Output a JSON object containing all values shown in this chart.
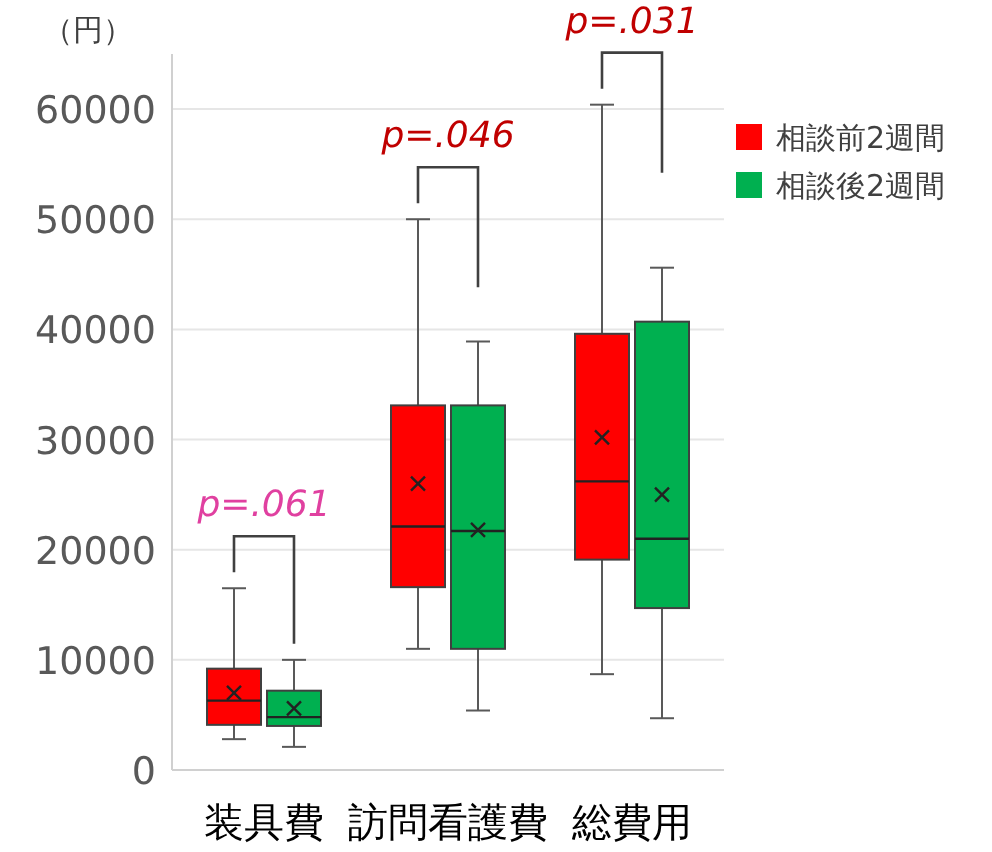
{
  "chart_data": {
    "type": "box",
    "ylabel": "（円）",
    "categories": [
      "装具費",
      "訪問看護費",
      "総費用"
    ],
    "series": [
      {
        "name": "相談前2週間",
        "color": "#ff0000",
        "boxes": [
          {
            "low": 2800,
            "q1": 4100,
            "median": 6300,
            "q3": 9200,
            "high": 16500,
            "mean": 7000
          },
          {
            "low": 11000,
            "q1": 16600,
            "median": 22100,
            "q3": 33100,
            "high": 50000,
            "mean": 26000
          },
          {
            "low": 8700,
            "q1": 19100,
            "median": 26200,
            "q3": 39600,
            "high": 60400,
            "mean": 30200
          }
        ]
      },
      {
        "name": "相談後2週間",
        "color": "#00b050",
        "boxes": [
          {
            "low": 2100,
            "q1": 4000,
            "median": 4800,
            "q3": 7200,
            "high": 10000,
            "mean": 5600
          },
          {
            "low": 5400,
            "q1": 11000,
            "median": 21700,
            "q3": 33100,
            "high": 38900,
            "mean": 21800
          },
          {
            "low": 4700,
            "q1": 14700,
            "median": 21000,
            "q3": 40700,
            "high": 45600,
            "mean": 25000
          }
        ]
      }
    ],
    "ylim": [
      0,
      65000
    ],
    "yticks": [
      0,
      10000,
      20000,
      30000,
      40000,
      50000,
      60000
    ],
    "grid": "y",
    "legend": "top right",
    "annotations": [
      "p=.061",
      "p=.046",
      "p=.031"
    ]
  }
}
